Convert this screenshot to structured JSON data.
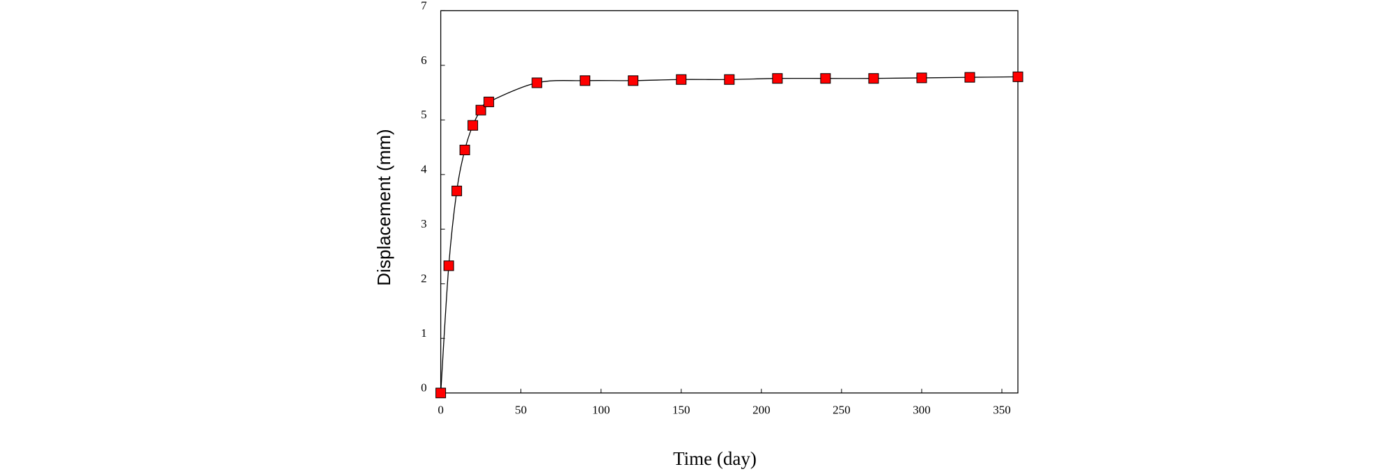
{
  "chart_data": {
    "type": "line",
    "x_label": "Time (day)",
    "y_label": "Displacement (mm)",
    "x": [
      0,
      5,
      10,
      15,
      20,
      25,
      30,
      60,
      90,
      120,
      150,
      180,
      210,
      240,
      270,
      300,
      330,
      360
    ],
    "series": [
      {
        "color": "#ff0000",
        "values": [
          0,
          2.33,
          3.7,
          4.45,
          4.9,
          5.18,
          5.33,
          5.68,
          5.72,
          5.72,
          5.74,
          5.74,
          5.76,
          5.76,
          5.76,
          5.77,
          5.78,
          5.79
        ]
      }
    ],
    "xlim": [
      0,
      360
    ],
    "xticks": [
      0,
      50,
      100,
      150,
      200,
      250,
      300,
      350
    ],
    "ylim": [
      0,
      7
    ],
    "yticks": [
      0,
      1,
      2,
      3,
      4,
      5,
      6,
      7
    ],
    "grid": false
  }
}
